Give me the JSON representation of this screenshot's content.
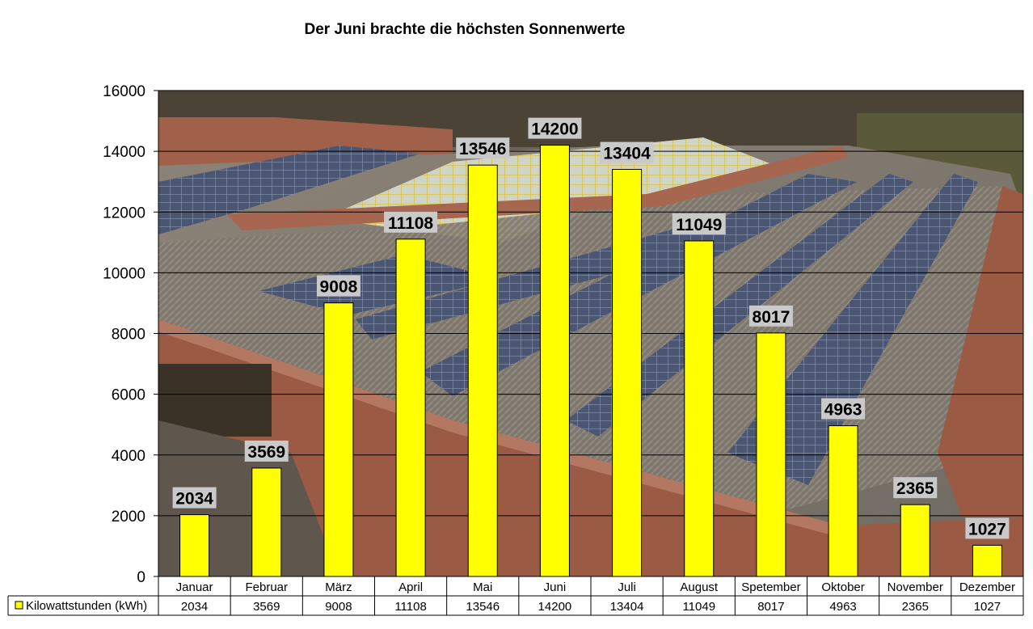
{
  "chart_data": {
    "type": "bar",
    "title": "Der Juni brachte die höchsten Sonnenwerte",
    "xlabel": "",
    "ylabel": "",
    "ylim": [
      0,
      16000
    ],
    "yticks": [
      0,
      2000,
      4000,
      6000,
      8000,
      10000,
      12000,
      14000,
      16000
    ],
    "grid": true,
    "legend_position": "bottom-left (data table)",
    "background": "photo of a flat roof with solar panels",
    "categories": [
      "Januar",
      "Februar",
      "März",
      "April",
      "Mai",
      "Juni",
      "Juli",
      "August",
      "Spetember",
      "Oktober",
      "November",
      "Dezember"
    ],
    "series": [
      {
        "name": "Kilowattstunden (kWh)",
        "color": "#ffff00",
        "values": [
          2034,
          3569,
          9008,
          11108,
          13546,
          14200,
          13404,
          11049,
          8017,
          4963,
          2365,
          1027
        ]
      }
    ]
  }
}
